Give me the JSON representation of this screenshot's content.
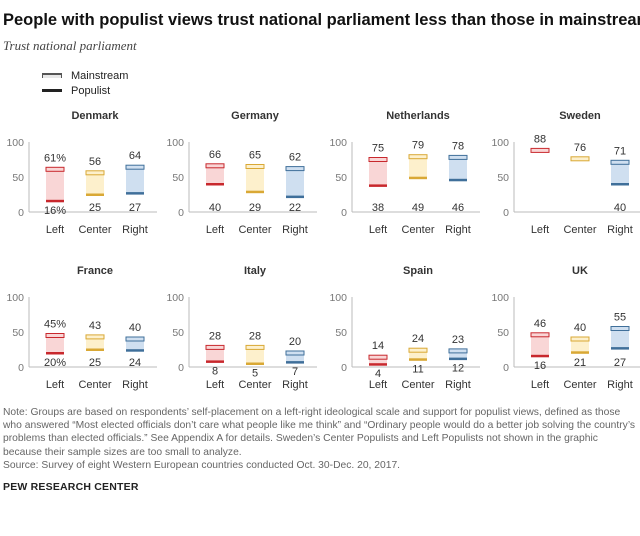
{
  "title": "People with populist views trust national parliament less than those in mainstream",
  "subtitle": "Trust national parliament",
  "legend": {
    "mainstream": "Mainstream",
    "populist": "Populist"
  },
  "note": "Note: Groups are based on respondents’ self-placement on a left-right ideological scale and support for populist views, defined as those who answered “Most elected officials don’t care what people like me think” and “Ordinary people would do a better job solving the country’s problems than elected officials.” See Appendix A for details. Sweden’s Center Populists and Left Populists not shown in the graphic because their sample sizes are too small to analyze.",
  "source": "Source: Survey of eight Western European countries conducted Oct. 30-Dec. 20, 2017.",
  "brand": "PEW RESEARCH CENTER",
  "colors": {
    "left": {
      "line": "#c8282d",
      "fill": "#f9d6d6"
    },
    "center": {
      "line": "#d9a835",
      "fill": "#fdf0cc"
    },
    "right": {
      "line": "#3f6f9a",
      "fill": "#cfdff0"
    }
  },
  "chart_data": {
    "type": "bar",
    "categories": [
      "Left",
      "Center",
      "Right"
    ],
    "ylim": [
      0,
      100
    ],
    "yticks": [
      "0",
      "50",
      "100"
    ],
    "panels": [
      {
        "country": "Denmark",
        "mainstream": [
          61,
          56,
          64
        ],
        "populist": [
          16,
          25,
          27
        ],
        "main_labels": [
          "61%",
          "56",
          "64"
        ],
        "pop_labels": [
          "16%",
          "25",
          "27"
        ]
      },
      {
        "country": "Germany",
        "mainstream": [
          66,
          65,
          62
        ],
        "populist": [
          40,
          29,
          22
        ],
        "main_labels": [
          "66",
          "65",
          "62"
        ],
        "pop_labels": [
          "40",
          "29",
          "22"
        ]
      },
      {
        "country": "Netherlands",
        "mainstream": [
          75,
          79,
          78
        ],
        "populist": [
          38,
          49,
          46
        ],
        "main_labels": [
          "75",
          "79",
          "78"
        ],
        "pop_labels": [
          "38",
          "49",
          "46"
        ]
      },
      {
        "country": "Sweden",
        "mainstream": [
          88,
          76,
          71
        ],
        "populist": [
          null,
          null,
          40
        ],
        "main_labels": [
          "88",
          "76",
          "71"
        ],
        "pop_labels": [
          "",
          "",
          "40"
        ]
      },
      {
        "country": "France",
        "mainstream": [
          45,
          43,
          40
        ],
        "populist": [
          20,
          25,
          24
        ],
        "main_labels": [
          "45%",
          "43",
          "40"
        ],
        "pop_labels": [
          "20%",
          "25",
          "24"
        ]
      },
      {
        "country": "Italy",
        "mainstream": [
          28,
          28,
          20
        ],
        "populist": [
          8,
          5,
          7
        ],
        "main_labels": [
          "28",
          "28",
          "20"
        ],
        "pop_labels": [
          "8",
          "5",
          "7"
        ]
      },
      {
        "country": "Spain",
        "mainstream": [
          14,
          24,
          23
        ],
        "populist": [
          4,
          11,
          12
        ],
        "main_labels": [
          "14",
          "24",
          "23"
        ],
        "pop_labels": [
          "4",
          "11",
          "12"
        ]
      },
      {
        "country": "UK",
        "mainstream": [
          46,
          40,
          55
        ],
        "populist": [
          16,
          21,
          27
        ],
        "main_labels": [
          "46",
          "40",
          "55"
        ],
        "pop_labels": [
          "16",
          "21",
          "27"
        ]
      }
    ]
  }
}
